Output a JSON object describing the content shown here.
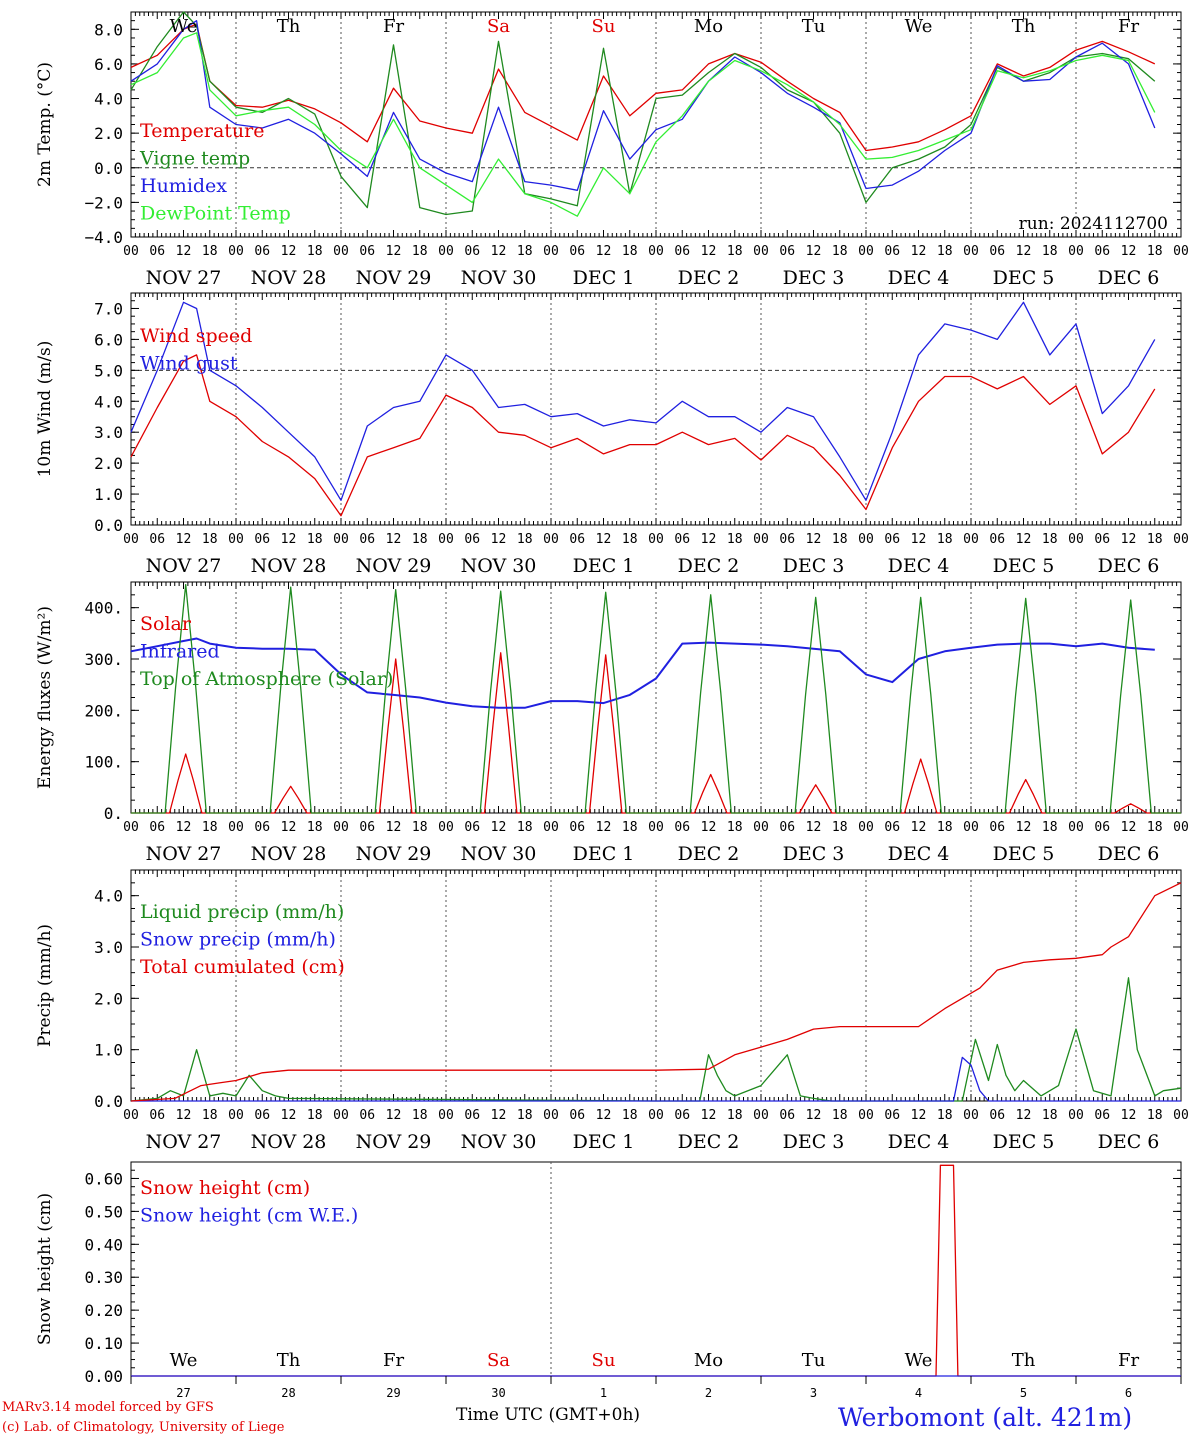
{
  "colors": {
    "red": "#e00000",
    "green": "#1f8a1f",
    "blue": "#2020e0",
    "lightgreen": "#33ee33",
    "axis": "#000000"
  },
  "time_axis": {
    "hour_labels": [
      "00",
      "06",
      "12",
      "18"
    ],
    "last_hour_label": "00",
    "day_labels": [
      "NOV 27",
      "NOV 28",
      "NOV 29",
      "NOV 30",
      "DEC  1",
      "DEC  2",
      "DEC  3",
      "DEC  4",
      "DEC  5",
      "DEC  6"
    ],
    "weekday_labels": [
      "We",
      "Th",
      "Fr",
      "Sa",
      "Su",
      "Mo",
      "Tu",
      "We",
      "Th",
      "Fr"
    ],
    "weekend_weekdays": [
      "Sa",
      "Su"
    ],
    "day_numbers": [
      "27",
      "28",
      "29",
      "30",
      "1",
      "2",
      "3",
      "4",
      "5",
      "6"
    ],
    "xlabel": "Time UTC (GMT+0h)"
  },
  "footer": {
    "model": "MARv3.14 model forced by GFS",
    "credit": "(c) Lab. of Climatology, University of Liege",
    "station": "Werbomont (alt. 421m)"
  },
  "chart_data": [
    {
      "type": "line",
      "ylabel": "2m Temp. (°C)",
      "ylim": [
        -4,
        9
      ],
      "yticks": [
        -4,
        -2,
        0,
        2,
        4,
        6,
        8
      ],
      "ytick_labels": [
        "−4.0",
        "−2.0",
        "0.0",
        "2.0",
        "4.0",
        "6.0",
        "8.0"
      ],
      "hline": 0,
      "annotation": "run: 2024112700",
      "x_unit": "hours since 2024-11-27 00 UTC",
      "series": [
        {
          "name": "Temperature",
          "color_key": "red",
          "x": [
            0,
            6,
            12,
            15,
            18,
            24,
            30,
            36,
            42,
            48,
            54,
            60,
            66,
            72,
            78,
            84,
            90,
            96,
            102,
            108,
            114,
            120,
            126,
            132,
            138,
            144,
            150,
            156,
            162,
            168,
            174,
            180,
            186,
            192,
            198,
            204,
            210,
            216,
            222,
            228,
            234
          ],
          "y": [
            5.8,
            6.5,
            8.0,
            8.3,
            5.0,
            3.6,
            3.5,
            3.9,
            3.4,
            2.6,
            1.5,
            4.6,
            2.7,
            2.3,
            2.0,
            5.7,
            3.2,
            2.4,
            1.6,
            5.3,
            3.0,
            4.3,
            4.5,
            6.0,
            6.6,
            6.1,
            5.0,
            4.0,
            3.2,
            1.0,
            1.2,
            1.5,
            2.2,
            3.0,
            6.0,
            5.3,
            5.8,
            6.8,
            7.3,
            6.7,
            6.0
          ]
        },
        {
          "name": "Vigne temp",
          "color_key": "green",
          "x": [
            0,
            6,
            12,
            15,
            18,
            24,
            30,
            36,
            42,
            48,
            54,
            60,
            66,
            72,
            78,
            84,
            90,
            96,
            102,
            108,
            114,
            120,
            126,
            132,
            138,
            144,
            150,
            156,
            162,
            168,
            174,
            180,
            186,
            192,
            198,
            204,
            210,
            216,
            222,
            228,
            234
          ],
          "y": [
            4.5,
            7.0,
            9.0,
            8.2,
            5.0,
            3.5,
            3.2,
            4.0,
            3.1,
            -0.5,
            -2.3,
            7.1,
            -2.3,
            -2.7,
            -2.5,
            7.3,
            -1.5,
            -1.8,
            -2.2,
            6.9,
            -1.5,
            4.0,
            4.2,
            5.5,
            6.6,
            5.8,
            4.5,
            3.8,
            2.0,
            -2.0,
            0.0,
            0.5,
            1.2,
            2.5,
            5.8,
            5.0,
            5.5,
            6.4,
            6.6,
            6.3,
            5.0
          ]
        },
        {
          "name": "Humidex",
          "color_key": "blue",
          "x": [
            0,
            6,
            12,
            15,
            18,
            24,
            30,
            36,
            42,
            48,
            54,
            60,
            66,
            72,
            78,
            84,
            90,
            96,
            102,
            108,
            114,
            120,
            126,
            132,
            138,
            144,
            150,
            156,
            162,
            168,
            174,
            180,
            186,
            192,
            198,
            204,
            210,
            216,
            222,
            228,
            234
          ],
          "y": [
            5.0,
            6.0,
            8.0,
            8.5,
            3.5,
            2.5,
            2.3,
            2.8,
            2.0,
            0.8,
            -0.5,
            3.2,
            0.5,
            -0.3,
            -0.8,
            3.5,
            -0.8,
            -1.0,
            -1.3,
            3.3,
            0.5,
            2.2,
            2.8,
            5.0,
            6.4,
            5.5,
            4.3,
            3.5,
            2.6,
            -1.2,
            -1.0,
            -0.2,
            1.0,
            2.0,
            5.9,
            5.0,
            5.1,
            6.4,
            7.2,
            6.0,
            2.3
          ]
        },
        {
          "name": "DewPoint Temp",
          "color_key": "lightgreen",
          "x": [
            0,
            6,
            12,
            15,
            18,
            24,
            30,
            36,
            42,
            48,
            54,
            60,
            66,
            72,
            78,
            84,
            90,
            96,
            102,
            108,
            114,
            120,
            126,
            132,
            138,
            144,
            150,
            156,
            162,
            168,
            174,
            180,
            186,
            192,
            198,
            204,
            210,
            216,
            222,
            228,
            234
          ],
          "y": [
            4.8,
            5.5,
            7.5,
            7.8,
            4.5,
            3.0,
            3.3,
            3.5,
            2.5,
            1.0,
            0.0,
            2.8,
            0.0,
            -1.0,
            -2.0,
            0.5,
            -1.5,
            -2.0,
            -2.8,
            0.0,
            -1.5,
            1.5,
            3.0,
            5.0,
            6.2,
            5.6,
            4.8,
            3.8,
            2.5,
            0.5,
            0.6,
            1.0,
            1.6,
            2.2,
            5.6,
            5.2,
            5.6,
            6.2,
            6.5,
            6.2,
            3.2
          ]
        }
      ]
    },
    {
      "type": "line",
      "ylabel": "10m Wind (m/s)",
      "ylim": [
        0,
        7.5
      ],
      "yticks": [
        0,
        1,
        2,
        3,
        4,
        5,
        6,
        7
      ],
      "ytick_labels": [
        "0.0",
        "1.0",
        "2.0",
        "3.0",
        "4.0",
        "5.0",
        "6.0",
        "7.0"
      ],
      "hline": 5,
      "x_unit": "hours since 2024-11-27 00 UTC",
      "series": [
        {
          "name": "Wind speed",
          "color_key": "red",
          "x": [
            0,
            6,
            12,
            15,
            18,
            24,
            30,
            36,
            42,
            48,
            54,
            60,
            66,
            72,
            78,
            84,
            90,
            96,
            102,
            108,
            114,
            120,
            126,
            132,
            138,
            144,
            150,
            156,
            162,
            168,
            174,
            180,
            186,
            192,
            198,
            204,
            210,
            216,
            222,
            228,
            234
          ],
          "y": [
            2.2,
            3.8,
            5.3,
            5.5,
            4.0,
            3.5,
            2.7,
            2.2,
            1.5,
            0.3,
            2.2,
            2.5,
            2.8,
            4.2,
            3.8,
            3.0,
            2.9,
            2.5,
            2.8,
            2.3,
            2.6,
            2.6,
            3.0,
            2.6,
            2.8,
            2.1,
            2.9,
            2.5,
            1.6,
            0.5,
            2.5,
            4.0,
            4.8,
            4.8,
            4.4,
            4.8,
            3.9,
            4.5,
            2.3,
            3.0,
            4.4
          ]
        },
        {
          "name": "Wind gust",
          "color_key": "blue",
          "x": [
            0,
            6,
            12,
            15,
            18,
            24,
            30,
            36,
            42,
            48,
            54,
            60,
            66,
            72,
            78,
            84,
            90,
            96,
            102,
            108,
            114,
            120,
            126,
            132,
            138,
            144,
            150,
            156,
            162,
            168,
            174,
            180,
            186,
            192,
            198,
            204,
            210,
            216,
            222,
            228,
            234
          ],
          "y": [
            3.0,
            5.0,
            7.2,
            7.0,
            5.0,
            4.5,
            3.8,
            3.0,
            2.2,
            0.8,
            3.2,
            3.8,
            4.0,
            5.5,
            5.0,
            3.8,
            3.9,
            3.5,
            3.6,
            3.2,
            3.4,
            3.3,
            4.0,
            3.5,
            3.5,
            3.0,
            3.8,
            3.5,
            2.2,
            0.8,
            3.0,
            5.5,
            6.5,
            6.3,
            6.0,
            7.2,
            5.5,
            6.5,
            3.6,
            4.5,
            6.0
          ]
        }
      ]
    },
    {
      "type": "line",
      "ylabel": "Energy fluxes (W/m²)",
      "ylim": [
        0,
        450
      ],
      "yticks": [
        0,
        100,
        200,
        300,
        400
      ],
      "ytick_labels": [
        "0.",
        "100.",
        "200.",
        "300.",
        "400."
      ],
      "x_unit": "hours since 2024-11-27 00 UTC",
      "series": [
        {
          "name": "Solar",
          "color_key": "red",
          "daily_peaks": [
            115,
            52,
            300,
            312,
            308,
            75,
            55,
            105,
            65,
            18
          ]
        },
        {
          "name": "Infrared",
          "color_key": "blue",
          "x": [
            0,
            6,
            12,
            15,
            18,
            24,
            30,
            36,
            42,
            48,
            54,
            60,
            66,
            72,
            78,
            84,
            90,
            96,
            102,
            108,
            114,
            120,
            126,
            132,
            138,
            144,
            150,
            156,
            162,
            168,
            174,
            180,
            186,
            192,
            198,
            204,
            210,
            216,
            222,
            228,
            234
          ],
          "y": [
            315,
            325,
            335,
            340,
            330,
            322,
            320,
            320,
            318,
            270,
            235,
            230,
            225,
            215,
            208,
            205,
            205,
            218,
            218,
            214,
            230,
            262,
            330,
            332,
            330,
            328,
            325,
            320,
            315,
            270,
            255,
            300,
            315,
            322,
            328,
            330,
            330,
            325,
            330,
            322,
            318
          ]
        },
        {
          "name": "Top of Atmosphere (Solar)",
          "color_key": "green",
          "daily_peaks": [
            445,
            440,
            435,
            432,
            430,
            425,
            420,
            420,
            418,
            415
          ]
        }
      ]
    },
    {
      "type": "line",
      "ylabel": "Precip (mm/h)",
      "ylim": [
        0,
        4.5
      ],
      "yticks": [
        0,
        1,
        2,
        3,
        4
      ],
      "ytick_labels": [
        "0.0",
        "1.0",
        "2.0",
        "3.0",
        "4.0"
      ],
      "x_unit": "hours since 2024-11-27 00 UTC",
      "series": [
        {
          "name": "Liquid precip (mm/h)",
          "color_key": "green",
          "x": [
            0,
            6,
            9,
            12,
            15,
            18,
            21,
            24,
            27,
            30,
            33,
            36,
            120,
            130,
            132,
            134,
            136,
            138,
            144,
            150,
            153,
            156,
            160,
            164,
            190,
            193,
            196,
            198,
            200,
            202,
            204,
            208,
            212,
            216,
            220,
            224,
            228,
            230,
            234,
            236,
            240
          ],
          "y": [
            0,
            0.05,
            0.2,
            0.1,
            1.0,
            0.1,
            0.15,
            0.1,
            0.5,
            0.2,
            0.1,
            0.05,
            0,
            0,
            0.9,
            0.5,
            0.2,
            0.1,
            0.3,
            0.9,
            0.1,
            0.05,
            0,
            0,
            0,
            1.2,
            0.4,
            1.1,
            0.5,
            0.2,
            0.4,
            0.1,
            0.3,
            1.4,
            0.2,
            0.1,
            2.4,
            1.0,
            0.1,
            0.2,
            0.25
          ]
        },
        {
          "name": "Snow precip (mm/h)",
          "color_key": "blue",
          "x": [
            0,
            188,
            190,
            192,
            194,
            196,
            240
          ],
          "y": [
            0,
            0,
            0.85,
            0.7,
            0.2,
            0,
            0
          ]
        },
        {
          "name": "Total cumulated (cm)",
          "color_key": "red",
          "x": [
            0,
            10,
            16,
            20,
            24,
            30,
            36,
            48,
            60,
            72,
            84,
            96,
            108,
            120,
            132,
            138,
            144,
            150,
            156,
            162,
            168,
            180,
            186,
            190,
            194,
            198,
            204,
            210,
            216,
            222,
            224,
            228,
            234,
            240
          ],
          "y": [
            0,
            0.05,
            0.3,
            0.35,
            0.4,
            0.55,
            0.6,
            0.6,
            0.6,
            0.6,
            0.6,
            0.6,
            0.6,
            0.6,
            0.62,
            0.9,
            1.05,
            1.2,
            1.4,
            1.45,
            1.45,
            1.45,
            1.8,
            2.0,
            2.2,
            2.55,
            2.7,
            2.75,
            2.78,
            2.85,
            3.0,
            3.2,
            4.0,
            4.25
          ]
        }
      ]
    },
    {
      "type": "line",
      "ylabel": "Snow height (cm)",
      "ylim": [
        0,
        0.65
      ],
      "yticks": [
        0,
        0.1,
        0.2,
        0.3,
        0.4,
        0.5,
        0.6
      ],
      "ytick_labels": [
        "0.00",
        "0.10",
        "0.20",
        "0.30",
        "0.40",
        "0.50",
        "0.60"
      ],
      "x_unit": "hours since 2024-11-27 00 UTC",
      "series": [
        {
          "name": "Snow height (cm)",
          "color_key": "red",
          "x": [
            0,
            184,
            185,
            188,
            189,
            240
          ],
          "y": [
            0,
            0,
            0.64,
            0.64,
            0,
            0
          ]
        },
        {
          "name": "Snow height (cm W.E.)",
          "color_key": "blue",
          "x": [
            0,
            240
          ],
          "y": [
            0,
            0
          ]
        }
      ]
    }
  ]
}
